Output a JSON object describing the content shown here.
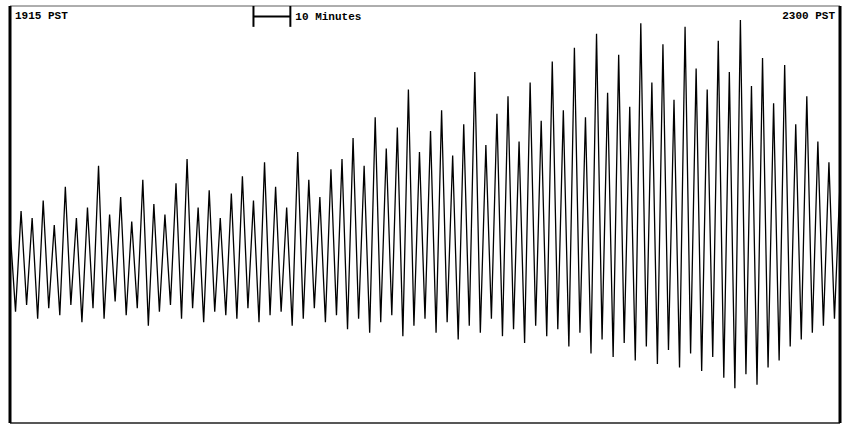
{
  "chart_data": {
    "type": "line",
    "color": "#000000",
    "grid": true,
    "tick_labels": false,
    "annotations": [
      {
        "text": "1915 PST",
        "x": 0
      },
      {
        "text": "10 Minutes",
        "x": [
          66,
          76
        ]
      },
      {
        "text": "2300 PST",
        "x": 225
      }
    ],
    "xlim": [
      0,
      225
    ],
    "xticks": [
      0,
      10,
      20,
      30,
      40,
      50,
      60,
      70,
      80,
      90,
      100,
      110,
      120,
      130,
      140,
      150,
      160,
      170,
      180,
      190,
      200,
      210,
      220
    ],
    "ylim": [
      0,
      12
    ],
    "yticks": [
      0,
      1,
      2,
      3,
      4,
      5,
      6,
      7,
      8,
      9,
      10,
      11,
      12
    ],
    "x": [
      0,
      1.5,
      3,
      4.5,
      6,
      7.5,
      9,
      10.5,
      12,
      13.5,
      15,
      16.5,
      18,
      19.5,
      21,
      22.5,
      24,
      25.5,
      27,
      28.5,
      30,
      31.5,
      33,
      34.5,
      36,
      37.5,
      39,
      40.5,
      42,
      43.5,
      45,
      46.5,
      48,
      49.5,
      51,
      52.5,
      54,
      55.5,
      57,
      58.5,
      60,
      61.5,
      63,
      64.5,
      66,
      67.5,
      69,
      70.5,
      72,
      73.5,
      75,
      76.5,
      78,
      79.5,
      81,
      82.5,
      84,
      85.5,
      87,
      88.5,
      90,
      91.5,
      93,
      94.5,
      96,
      97.5,
      99,
      100.5,
      102,
      103.5,
      105,
      106.5,
      108,
      109.5,
      111,
      112.5,
      114,
      115.5,
      117,
      118.5,
      120,
      121.5,
      123,
      124.5,
      126,
      127.5,
      129,
      130.5,
      132,
      133.5,
      135,
      136.5,
      138,
      139.5,
      141,
      142.5,
      144,
      145.5,
      147,
      148.5,
      150,
      151.5,
      153,
      154.5,
      156,
      157.5,
      159,
      160.5,
      162,
      163.5,
      165,
      166.5,
      168,
      169.5,
      171,
      172.5,
      174,
      175.5,
      177,
      178.5,
      180,
      181.5,
      183,
      184.5,
      186,
      187.5,
      189,
      190.5,
      192,
      193.5,
      195,
      196.5,
      198,
      199.5,
      201,
      202.5,
      204,
      205.5,
      207,
      208.5,
      210,
      211.5,
      213,
      214.5,
      216,
      217.5,
      219,
      220.5,
      222,
      223.5,
      225
    ],
    "values": [
      5.6,
      3.2,
      6.1,
      3.4,
      5.9,
      3.0,
      6.4,
      3.3,
      5.7,
      3.1,
      6.8,
      3.4,
      5.9,
      2.9,
      6.2,
      3.3,
      7.4,
      3.0,
      6.0,
      3.5,
      6.5,
      3.1,
      5.8,
      3.3,
      7.0,
      2.8,
      6.3,
      3.2,
      6.0,
      3.4,
      6.9,
      3.0,
      7.6,
      3.3,
      6.2,
      2.9,
      6.7,
      3.2,
      5.9,
      3.1,
      6.6,
      3.0,
      7.1,
      3.3,
      6.4,
      2.9,
      7.5,
      3.1,
      6.8,
      3.2,
      6.2,
      2.8,
      7.8,
      3.0,
      7.0,
      3.3,
      6.5,
      2.9,
      7.3,
      3.1,
      7.6,
      2.7,
      8.2,
      3.0,
      7.4,
      2.6,
      8.8,
      2.9,
      7.9,
      3.1,
      8.5,
      2.5,
      9.6,
      2.8,
      7.8,
      3.0,
      8.4,
      2.6,
      9.0,
      2.9,
      7.7,
      2.4,
      8.6,
      2.8,
      10.1,
      2.6,
      8.0,
      3.0,
      8.9,
      2.5,
      9.4,
      2.7,
      8.1,
      2.3,
      9.8,
      2.8,
      8.7,
      2.5,
      10.4,
      2.7,
      9.0,
      2.2,
      10.8,
      2.6,
      8.8,
      2.0,
      11.2,
      2.4,
      9.5,
      1.9,
      10.6,
      2.3,
      9.1,
      1.8,
      11.5,
      2.2,
      9.8,
      1.7,
      10.9,
      2.1,
      9.3,
      1.6,
      11.4,
      2.0,
      10.2,
      1.5,
      9.6,
      1.9,
      11.0,
      1.3,
      10.1,
      1.0,
      11.6,
      1.4,
      9.7,
      1.1,
      10.5,
      1.6,
      9.2,
      1.8,
      10.3,
      2.2,
      8.6,
      2.4,
      9.4,
      2.6,
      8.1,
      2.8,
      7.5,
      3.0,
      6.9
    ]
  }
}
